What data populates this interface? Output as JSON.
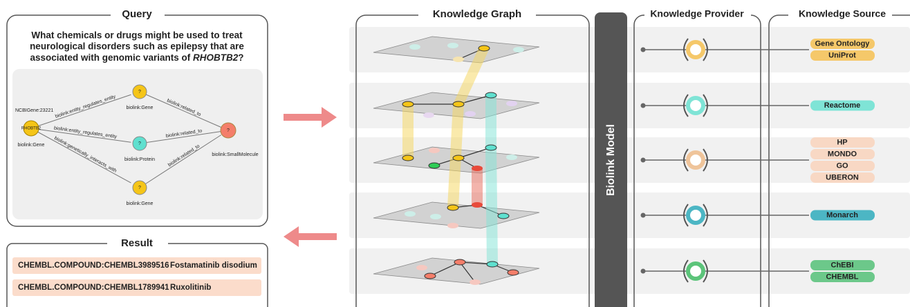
{
  "query": {
    "title": "Query",
    "question_lines": [
      "What chemicals or drugs might be used to treat",
      "neurological disorders such as epilepsy that are",
      "associated with genomic variants of "
    ],
    "question_term": "RHOBTB2",
    "question_end": "?",
    "graph": {
      "start": {
        "id": "NCBIGene:23221",
        "label": "RHOBTB2",
        "type": "biolink:Gene"
      },
      "nodes": [
        {
          "label": "?",
          "type": "biolink:Gene"
        },
        {
          "label": "?",
          "type": "biolink:Protein"
        },
        {
          "label": "?",
          "type": "biolink:Gene"
        }
      ],
      "end": {
        "label": "?",
        "type": "biolink:SmallMolecule"
      },
      "edges_in": [
        "biolink:entity_regulates_entity",
        "biolink:entity_regulates_entity",
        "biolink:genetically_interacts_with"
      ],
      "edges_out": [
        "biolink:related_to",
        "biolink:related_to",
        "biolink:related_to"
      ]
    }
  },
  "result": {
    "title": "Result",
    "rows": [
      [
        "CHEMBL.COMPOUND:CHEMBL3989516",
        "Fostamatinib disodium"
      ],
      [
        "CHEMBL.COMPOUND:CHEMBL1789941",
        "Ruxolitinib"
      ]
    ]
  },
  "knowledge_graph": {
    "title": "Knowledge Graph"
  },
  "biolink_model": {
    "title": "Biolink Model"
  },
  "knowledge_provider": {
    "title": "Knowledge Provider"
  },
  "knowledge_source": {
    "title": "Knowledge Source",
    "groups": [
      [
        "Gene Ontology",
        "UniProt"
      ],
      [
        "Reactome"
      ],
      [
        "HP",
        "MONDO",
        "GO",
        "UBERON"
      ],
      [
        "Monarch"
      ],
      [
        "ChEBI",
        "CHEMBL"
      ]
    ]
  }
}
